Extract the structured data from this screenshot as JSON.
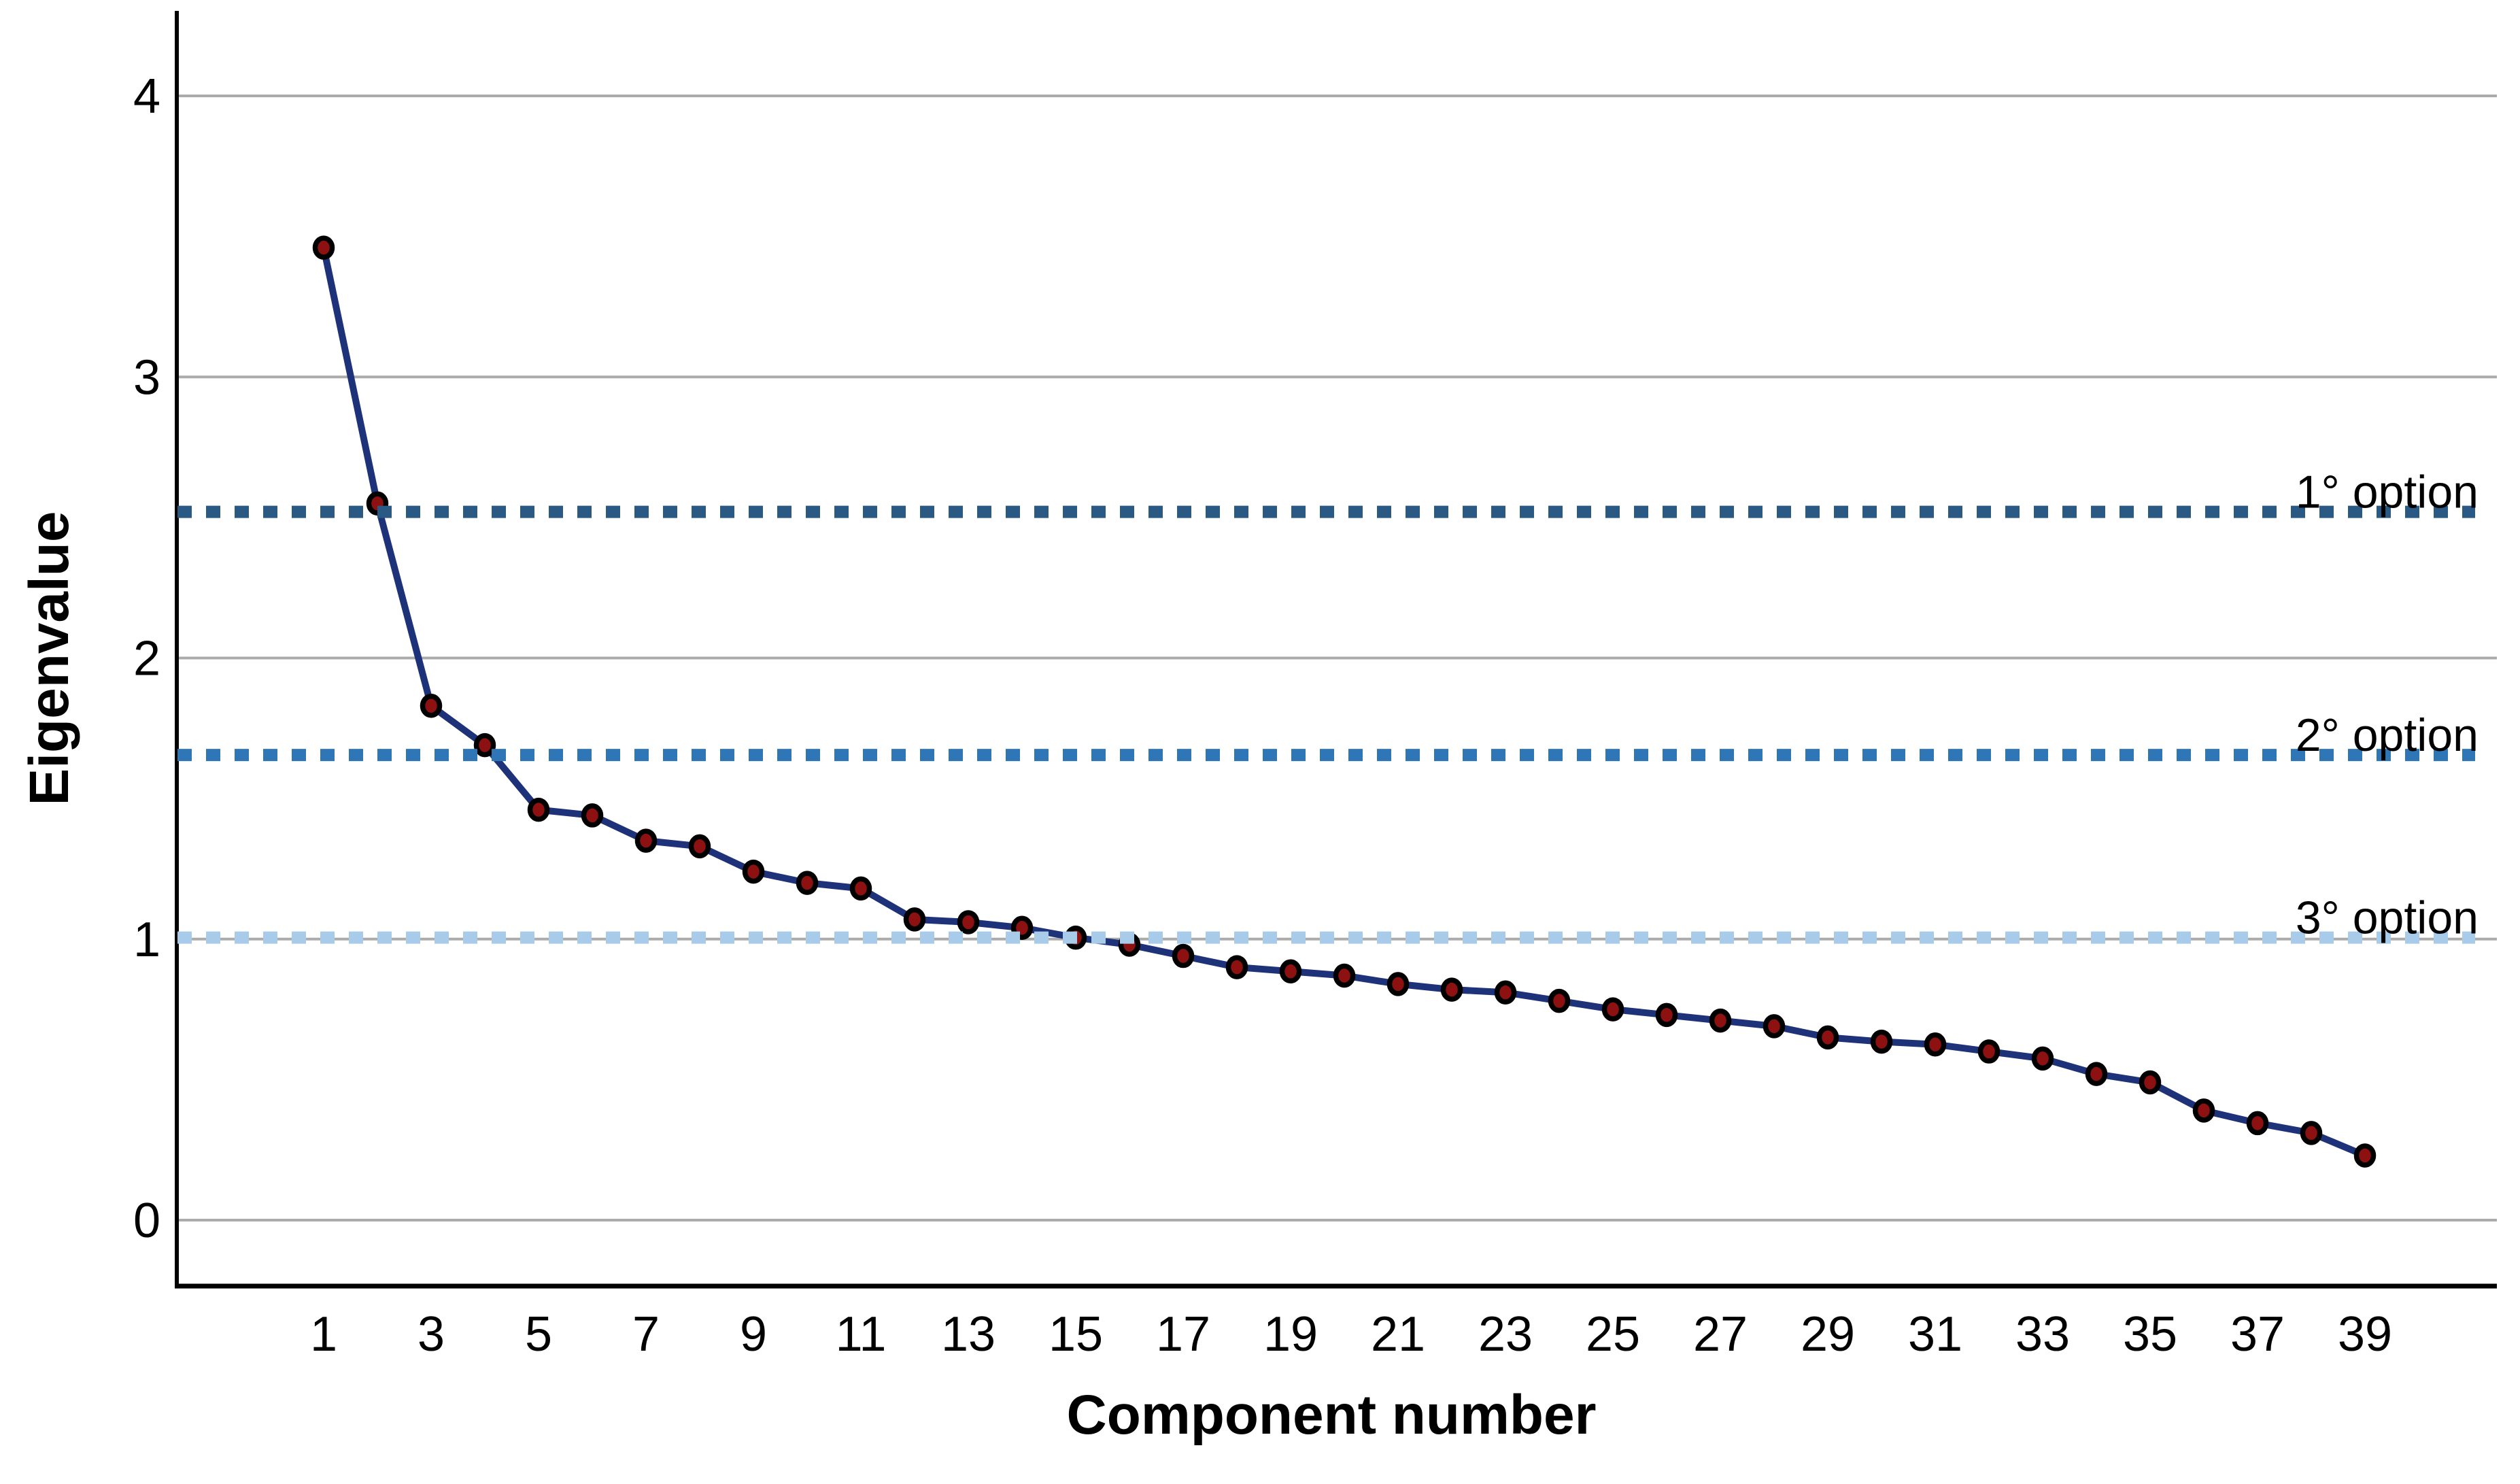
{
  "chart_data": {
    "type": "line",
    "title": "",
    "xlabel": "Component number",
    "ylabel": "Eigenvalue",
    "x": [
      1,
      2,
      3,
      4,
      5,
      6,
      7,
      8,
      9,
      10,
      11,
      12,
      13,
      14,
      15,
      16,
      17,
      18,
      19,
      20,
      21,
      22,
      23,
      24,
      25,
      26,
      27,
      28,
      29,
      30,
      31,
      32,
      33,
      34,
      35,
      36,
      37,
      38,
      39
    ],
    "series": [
      {
        "name": "Eigenvalues",
        "values": [
          3.46,
          2.55,
          1.83,
          1.69,
          1.46,
          1.44,
          1.35,
          1.33,
          1.24,
          1.2,
          1.18,
          1.07,
          1.06,
          1.04,
          1.005,
          0.98,
          0.94,
          0.9,
          0.885,
          0.87,
          0.84,
          0.82,
          0.81,
          0.78,
          0.75,
          0.73,
          0.71,
          0.69,
          0.65,
          0.635,
          0.625,
          0.6,
          0.575,
          0.52,
          0.49,
          0.39,
          0.345,
          0.31,
          0.23
        ]
      }
    ],
    "x_tick_labels": [
      "1",
      "3",
      "5",
      "7",
      "9",
      "11",
      "13",
      "15",
      "17",
      "19",
      "21",
      "23",
      "25",
      "27",
      "29",
      "31",
      "33",
      "35",
      "37",
      "39"
    ],
    "x_tick_values": [
      1,
      3,
      5,
      7,
      9,
      11,
      13,
      15,
      17,
      19,
      21,
      23,
      25,
      27,
      29,
      31,
      33,
      35,
      37,
      39
    ],
    "y_tick_labels": [
      "0",
      "1",
      "2",
      "3",
      "4"
    ],
    "y_tick_values": [
      0,
      1,
      2,
      3,
      4
    ],
    "ylim": [
      0,
      4.35
    ],
    "grid": "horizontal-only",
    "legend_position": "none",
    "reference_lines": [
      {
        "label": "1° option",
        "value": 2.52,
        "color": "#2A5A84"
      },
      {
        "label": "2° option",
        "value": 1.655,
        "color": "#2E76B6"
      },
      {
        "label": "3° option",
        "value": 1.005,
        "color": "#A9CBEA"
      }
    ],
    "colors": {
      "series_line": "#1E3279",
      "marker_fill": "#8D1111",
      "marker_outline": "#000000",
      "gridline": "#ABABAB",
      "axis": "#000000",
      "background": "#FFFFFF"
    }
  }
}
